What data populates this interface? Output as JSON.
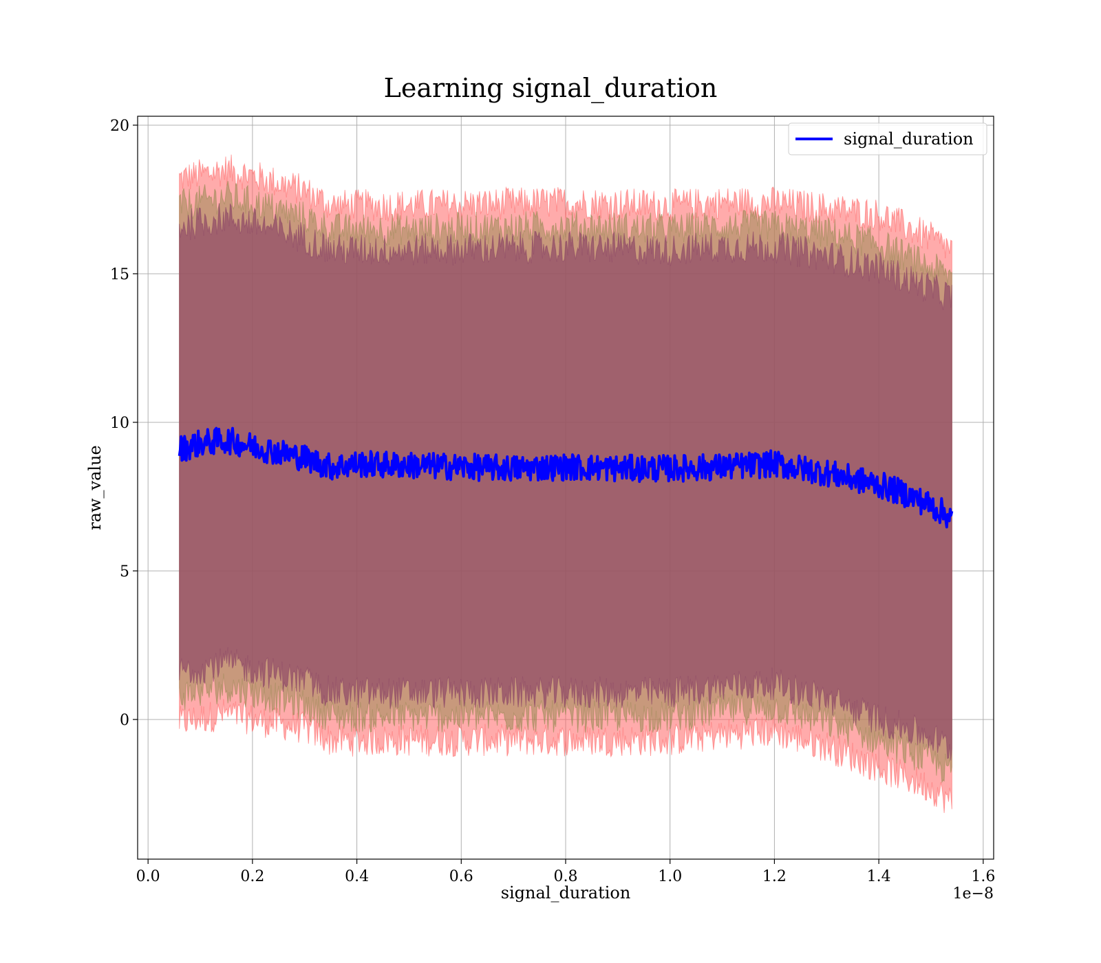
{
  "chart_data": {
    "type": "line",
    "title": "Learning signal_duration",
    "xlabel": "signal_duration",
    "ylabel": "raw_value",
    "x_offset_label": "1e−8",
    "xlim": [
      -0.02,
      1.62
    ],
    "ylim": [
      -4.7,
      20.3
    ],
    "x_ticks": [
      0.0,
      0.2,
      0.4,
      0.6,
      0.8,
      1.0,
      1.2,
      1.4,
      1.6
    ],
    "x_tick_labels": [
      "0.0",
      "0.2",
      "0.4",
      "0.6",
      "0.8",
      "1.0",
      "1.2",
      "1.4",
      "1.6"
    ],
    "y_ticks": [
      0,
      5,
      10,
      15,
      20
    ],
    "y_tick_labels": [
      "0",
      "5",
      "10",
      "15",
      "20"
    ],
    "grid": true,
    "legend_position": "top-right",
    "colors": {
      "line": "#0000ff",
      "band_outer": "#ff6666",
      "band_mid": "#9a8a55",
      "band_inner": "#8b4466",
      "grid": "#b0b0b0"
    },
    "series": [
      {
        "name": "signal_duration",
        "role": "mean",
        "x": [
          0.06,
          0.1,
          0.15,
          0.2,
          0.25,
          0.3,
          0.35,
          0.4,
          0.5,
          0.6,
          0.7,
          0.8,
          0.9,
          1.0,
          1.1,
          1.2,
          1.3,
          1.35,
          1.4,
          1.45,
          1.5,
          1.54
        ],
        "y": [
          9.1,
          9.3,
          9.4,
          9.2,
          9.0,
          8.8,
          8.5,
          8.6,
          8.55,
          8.5,
          8.45,
          8.5,
          8.45,
          8.45,
          8.5,
          8.6,
          8.3,
          8.1,
          7.9,
          7.6,
          7.2,
          6.8
        ]
      }
    ],
    "bands": [
      {
        "role": "outer",
        "x": [
          0.06,
          0.15,
          0.2,
          0.3,
          0.35,
          0.5,
          0.8,
          1.0,
          1.1,
          1.2,
          1.3,
          1.4,
          1.5,
          1.54
        ],
        "upper": [
          18.2,
          18.5,
          18.3,
          17.8,
          17.3,
          17.3,
          17.4,
          17.3,
          17.4,
          17.4,
          17.2,
          17.0,
          16.2,
          15.8
        ],
        "lower": [
          -0.1,
          0.2,
          0.0,
          -0.3,
          -0.7,
          -0.7,
          -0.7,
          -0.7,
          -0.5,
          -0.4,
          -0.9,
          -1.6,
          -2.3,
          -2.8
        ]
      },
      {
        "role": "middle",
        "x": [
          0.06,
          0.15,
          0.2,
          0.3,
          0.35,
          0.5,
          0.8,
          1.0,
          1.1,
          1.2,
          1.3,
          1.4,
          1.5,
          1.54
        ],
        "upper": [
          17.3,
          17.6,
          17.4,
          16.9,
          16.5,
          16.5,
          16.6,
          16.5,
          16.6,
          16.6,
          16.4,
          16.0,
          15.2,
          14.9
        ],
        "lower": [
          0.8,
          1.1,
          0.9,
          0.5,
          0.1,
          0.1,
          0.1,
          0.1,
          0.3,
          0.4,
          -0.1,
          -0.7,
          -1.4,
          -1.8
        ]
      },
      {
        "role": "inner",
        "x": [
          0.06,
          0.15,
          0.2,
          0.3,
          0.35,
          0.5,
          0.8,
          1.0,
          1.1,
          1.2,
          1.3,
          1.4,
          1.5,
          1.54
        ],
        "upper": [
          16.6,
          16.9,
          16.7,
          16.2,
          15.8,
          15.8,
          15.9,
          15.8,
          15.9,
          15.9,
          15.6,
          15.2,
          14.5,
          14.2
        ],
        "lower": [
          1.6,
          1.9,
          1.7,
          1.3,
          0.9,
          0.9,
          0.9,
          0.9,
          1.1,
          1.2,
          0.7,
          0.0,
          -0.6,
          -1.0
        ]
      }
    ]
  }
}
